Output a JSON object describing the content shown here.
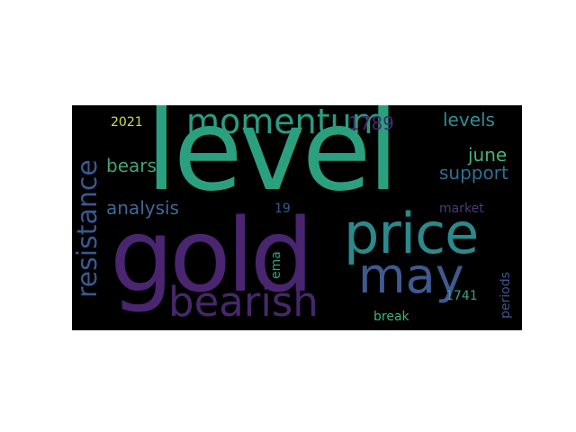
{
  "wordcloud": {
    "words": [
      {
        "key": "level",
        "text": "level",
        "color": "#2ba07e"
      },
      {
        "key": "gold",
        "text": "gold",
        "color": "#4a2570"
      },
      {
        "key": "price",
        "text": "price",
        "color": "#2a8a8c"
      },
      {
        "key": "may",
        "text": "may",
        "color": "#3f5a8e"
      },
      {
        "key": "bearish",
        "text": "bearish",
        "color": "#462869"
      },
      {
        "key": "momentum",
        "text": "momentum",
        "color": "#2a9d80"
      },
      {
        "key": "resistance",
        "text": "resistance",
        "color": "#3a5891"
      },
      {
        "key": "analysis",
        "text": "analysis",
        "color": "#3c6a9a"
      },
      {
        "key": "bears",
        "text": "bears",
        "color": "#43a37a"
      },
      {
        "key": "support",
        "text": "support",
        "color": "#2f6f93"
      },
      {
        "key": "levels",
        "text": "levels",
        "color": "#2f8f96"
      },
      {
        "key": "june",
        "text": "june",
        "color": "#43b47b"
      },
      {
        "key": "1789",
        "text": "1789",
        "color": "#3f2b70"
      },
      {
        "key": "2021",
        "text": "2021",
        "color": "#c6e33c"
      },
      {
        "key": "19",
        "text": "19",
        "color": "#2a5f8f"
      },
      {
        "key": "market",
        "text": "market",
        "color": "#4b3b7e"
      },
      {
        "key": "ema",
        "text": "ema",
        "color": "#2da57f"
      },
      {
        "key": "1741",
        "text": "1741",
        "color": "#33a48d"
      },
      {
        "key": "break",
        "text": "break",
        "color": "#44b07a"
      },
      {
        "key": "periods",
        "text": "periods",
        "color": "#3b5a92"
      }
    ]
  }
}
